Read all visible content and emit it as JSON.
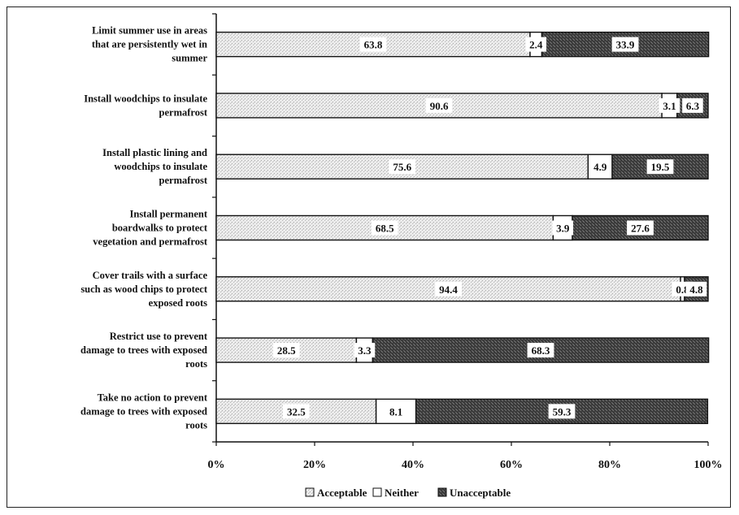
{
  "chart_data": {
    "type": "bar",
    "orientation": "horizontal",
    "stacked": true,
    "categories": [
      [
        "Limit summer use in areas",
        "that are persistently wet in",
        "summer"
      ],
      [
        "Install woodchips to insulate",
        "permafrost"
      ],
      [
        "Install plastic lining and",
        "woodchips to insulate",
        "permafrost"
      ],
      [
        "Install permanent",
        "boardwalks to protect",
        "vegetation and permafrost"
      ],
      [
        "Cover trails with a surface",
        "such as wood chips to protect",
        "exposed roots"
      ],
      [
        "Restrict use to prevent",
        "damage to trees with exposed",
        "roots"
      ],
      [
        "Take no action to prevent",
        "damage to trees with exposed",
        "roots"
      ]
    ],
    "series": [
      {
        "name": "Acceptable",
        "values": [
          63.8,
          90.6,
          75.6,
          68.5,
          94.4,
          28.5,
          32.5
        ],
        "color": "#e8e8e8"
      },
      {
        "name": "Neither",
        "values": [
          2.4,
          3.1,
          4.9,
          3.9,
          0.8,
          3.3,
          8.1
        ],
        "color": "#ffffff"
      },
      {
        "name": "Unacceptable",
        "values": [
          33.9,
          6.3,
          19.5,
          27.6,
          4.8,
          68.3,
          59.3
        ],
        "color": "#505050"
      }
    ],
    "data_labels": [
      [
        "63.8",
        "2.4",
        "33.9"
      ],
      [
        "90.6",
        "3.1",
        "6.3"
      ],
      [
        "75.6",
        "4.9",
        "19.5"
      ],
      [
        "68.5",
        "3.9",
        "27.6"
      ],
      [
        "94.4",
        "0.8",
        "4.8"
      ],
      [
        "28.5",
        "3.3",
        "68.3"
      ],
      [
        "32.5",
        "8.1",
        "59.3"
      ]
    ],
    "xlim": [
      0,
      100
    ],
    "x_ticks": [
      "0%",
      "20%",
      "40%",
      "60%",
      "80%",
      "100%"
    ],
    "title": "",
    "xlabel": "",
    "ylabel": "",
    "grid": false,
    "legend": {
      "position": "bottom",
      "entries": [
        "Acceptable",
        "Neither",
        "Unacceptable"
      ]
    }
  }
}
